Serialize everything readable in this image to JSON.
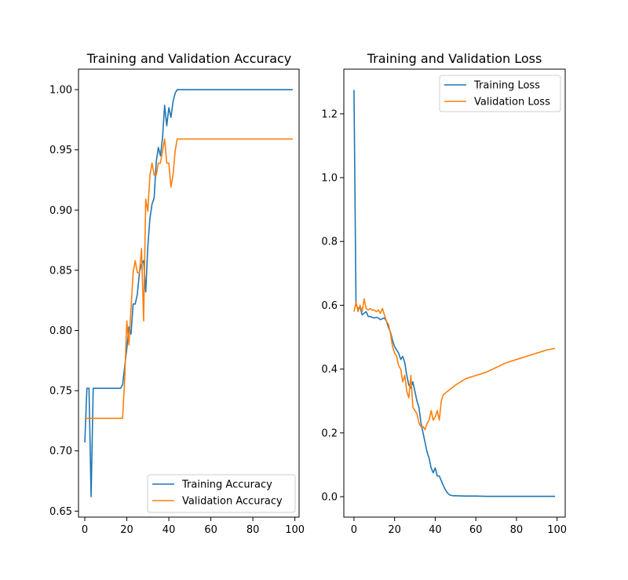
{
  "colors": {
    "training": "#1f77b4",
    "validation": "#ff7f0e",
    "axis": "#000000",
    "legend_border": "#cccccc"
  },
  "chart_data": [
    {
      "type": "line",
      "title": "Training and Validation Accuracy",
      "xlabel": "",
      "ylabel": "",
      "xlim": [
        -3,
        102
      ],
      "ylim": [
        0.645,
        1.017
      ],
      "xticks": [
        0,
        20,
        40,
        60,
        80,
        100
      ],
      "yticks": [
        0.65,
        0.7,
        0.75,
        0.8,
        0.85,
        0.9,
        0.95,
        1.0
      ],
      "ytick_labels": [
        "0.65",
        "0.70",
        "0.75",
        "0.80",
        "0.85",
        "0.90",
        "0.95",
        "1.00"
      ],
      "grid": false,
      "legend_position": "lower-right",
      "series": [
        {
          "name": "Training Accuracy",
          "color": "#1f77b4",
          "x": [
            0,
            1,
            2,
            3,
            4,
            5,
            6,
            7,
            8,
            9,
            10,
            11,
            12,
            13,
            14,
            15,
            16,
            17,
            18,
            19,
            20,
            21,
            22,
            23,
            24,
            25,
            26,
            27,
            28,
            29,
            30,
            31,
            32,
            33,
            34,
            35,
            36,
            37,
            38,
            39,
            40,
            41,
            42,
            43,
            44,
            45,
            46,
            47,
            48,
            49,
            50,
            55,
            60,
            65,
            70,
            75,
            80,
            85,
            90,
            95,
            99
          ],
          "y": [
            0.707,
            0.752,
            0.752,
            0.662,
            0.752,
            0.752,
            0.752,
            0.752,
            0.752,
            0.752,
            0.752,
            0.752,
            0.752,
            0.752,
            0.752,
            0.752,
            0.752,
            0.752,
            0.755,
            0.77,
            0.785,
            0.803,
            0.797,
            0.822,
            0.822,
            0.83,
            0.848,
            0.855,
            0.858,
            0.832,
            0.87,
            0.893,
            0.905,
            0.91,
            0.94,
            0.952,
            0.945,
            0.96,
            0.987,
            0.97,
            0.985,
            0.977,
            0.99,
            0.997,
            1.0,
            1.0,
            1.0,
            1.0,
            1.0,
            1.0,
            1.0,
            1.0,
            1.0,
            1.0,
            1.0,
            1.0,
            1.0,
            1.0,
            1.0,
            1.0,
            1.0
          ]
        },
        {
          "name": "Validation Accuracy",
          "color": "#ff7f0e",
          "x": [
            0,
            1,
            2,
            3,
            4,
            5,
            6,
            7,
            8,
            9,
            10,
            11,
            12,
            13,
            14,
            15,
            16,
            17,
            18,
            19,
            20,
            21,
            22,
            23,
            24,
            25,
            26,
            27,
            28,
            29,
            30,
            31,
            32,
            33,
            34,
            35,
            36,
            37,
            38,
            39,
            40,
            41,
            42,
            43,
            44,
            45,
            46,
            47,
            48,
            49,
            50,
            55,
            60,
            65,
            70,
            75,
            80,
            85,
            90,
            95,
            99
          ],
          "y": [
            0.727,
            0.727,
            0.727,
            0.727,
            0.727,
            0.727,
            0.727,
            0.727,
            0.727,
            0.727,
            0.727,
            0.727,
            0.727,
            0.727,
            0.727,
            0.727,
            0.727,
            0.727,
            0.727,
            0.76,
            0.808,
            0.788,
            0.818,
            0.848,
            0.858,
            0.848,
            0.848,
            0.868,
            0.808,
            0.909,
            0.899,
            0.929,
            0.939,
            0.929,
            0.929,
            0.939,
            0.939,
            0.949,
            0.959,
            0.939,
            0.939,
            0.919,
            0.929,
            0.949,
            0.959,
            0.959,
            0.959,
            0.959,
            0.959,
            0.959,
            0.959,
            0.959,
            0.959,
            0.959,
            0.959,
            0.959,
            0.959,
            0.959,
            0.959,
            0.959,
            0.959
          ]
        }
      ]
    },
    {
      "type": "line",
      "title": "Training and Validation Loss",
      "xlabel": "",
      "ylabel": "",
      "xlim": [
        -5,
        104
      ],
      "ylim": [
        -0.064,
        1.34
      ],
      "xticks": [
        0,
        20,
        40,
        60,
        80,
        100
      ],
      "yticks": [
        0.0,
        0.2,
        0.4,
        0.6,
        0.8,
        1.0,
        1.2
      ],
      "ytick_labels": [
        "0.0",
        "0.2",
        "0.4",
        "0.6",
        "0.8",
        "1.0",
        "1.2"
      ],
      "grid": false,
      "legend_position": "upper-right",
      "series": [
        {
          "name": "Training Loss",
          "color": "#1f77b4",
          "x": [
            0,
            1,
            2,
            3,
            4,
            5,
            6,
            7,
            8,
            9,
            10,
            11,
            12,
            13,
            14,
            15,
            16,
            17,
            18,
            19,
            20,
            21,
            22,
            23,
            24,
            25,
            26,
            27,
            28,
            29,
            30,
            31,
            32,
            33,
            34,
            35,
            36,
            37,
            38,
            39,
            40,
            41,
            42,
            43,
            44,
            45,
            46,
            47,
            48,
            49,
            50,
            55,
            60,
            65,
            70,
            75,
            80,
            85,
            90,
            95,
            99
          ],
          "y": [
            1.275,
            0.6,
            0.59,
            0.595,
            0.57,
            0.575,
            0.58,
            0.565,
            0.565,
            0.562,
            0.56,
            0.562,
            0.56,
            0.555,
            0.558,
            0.56,
            0.55,
            0.53,
            0.515,
            0.49,
            0.47,
            0.46,
            0.45,
            0.43,
            0.44,
            0.42,
            0.38,
            0.35,
            0.34,
            0.36,
            0.33,
            0.3,
            0.28,
            0.23,
            0.2,
            0.17,
            0.14,
            0.12,
            0.09,
            0.075,
            0.09,
            0.065,
            0.065,
            0.05,
            0.035,
            0.022,
            0.012,
            0.006,
            0.004,
            0.003,
            0.003,
            0.002,
            0.002,
            0.001,
            0.001,
            0.001,
            0.001,
            0.001,
            0.001,
            0.001,
            0.001
          ]
        },
        {
          "name": "Validation Loss",
          "color": "#ff7f0e",
          "x": [
            0,
            1,
            2,
            3,
            4,
            5,
            6,
            7,
            8,
            9,
            10,
            11,
            12,
            13,
            14,
            15,
            16,
            17,
            18,
            19,
            20,
            21,
            22,
            23,
            24,
            25,
            26,
            27,
            28,
            29,
            30,
            31,
            32,
            33,
            34,
            35,
            36,
            37,
            38,
            39,
            40,
            41,
            42,
            43,
            44,
            45,
            46,
            47,
            48,
            49,
            50,
            55,
            60,
            65,
            70,
            75,
            80,
            85,
            90,
            95,
            99
          ],
          "y": [
            0.58,
            0.61,
            0.58,
            0.6,
            0.58,
            0.62,
            0.59,
            0.585,
            0.59,
            0.585,
            0.585,
            0.58,
            0.585,
            0.575,
            0.59,
            0.57,
            0.55,
            0.54,
            0.51,
            0.47,
            0.45,
            0.44,
            0.41,
            0.4,
            0.36,
            0.38,
            0.33,
            0.31,
            0.38,
            0.28,
            0.27,
            0.26,
            0.23,
            0.22,
            0.22,
            0.21,
            0.23,
            0.24,
            0.27,
            0.24,
            0.25,
            0.27,
            0.24,
            0.3,
            0.32,
            0.325,
            0.33,
            0.335,
            0.34,
            0.345,
            0.35,
            0.37,
            0.38,
            0.39,
            0.405,
            0.42,
            0.43,
            0.44,
            0.45,
            0.46,
            0.465
          ]
        }
      ]
    }
  ]
}
